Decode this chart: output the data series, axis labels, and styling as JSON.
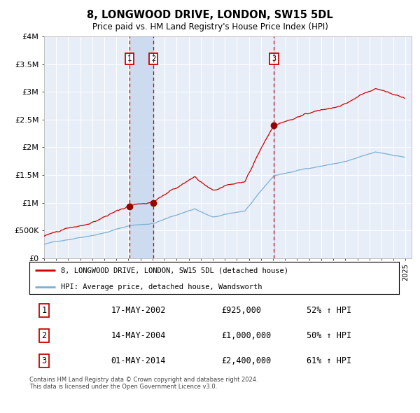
{
  "title": "8, LONGWOOD DRIVE, LONDON, SW15 5DL",
  "subtitle": "Price paid vs. HM Land Registry's House Price Index (HPI)",
  "red_label": "8, LONGWOOD DRIVE, LONDON, SW15 5DL (detached house)",
  "blue_label": "HPI: Average price, detached house, Wandsworth",
  "footer": "Contains HM Land Registry data © Crown copyright and database right 2024.\nThis data is licensed under the Open Government Licence v3.0.",
  "transactions": [
    {
      "num": 1,
      "date": "17-MAY-2002",
      "price": 925000,
      "pct": "52%",
      "dir": "↑"
    },
    {
      "num": 2,
      "date": "14-MAY-2004",
      "price": 1000000,
      "pct": "50%",
      "dir": "↑"
    },
    {
      "num": 3,
      "date": "01-MAY-2014",
      "price": 2400000,
      "pct": "61%",
      "dir": "↑"
    }
  ],
  "transaction_dates_idx": [
    85,
    109,
    229
  ],
  "transaction_prices": [
    925000,
    1000000,
    2400000
  ],
  "ylim": [
    0,
    4000000
  ],
  "yticks": [
    0,
    500000,
    1000000,
    1500000,
    2000000,
    2500000,
    3000000,
    3500000,
    4000000
  ],
  "ytick_labels": [
    "£0",
    "£500K",
    "£1M",
    "£1.5M",
    "£2M",
    "£2.5M",
    "£3M",
    "£3.5M",
    "£4M"
  ],
  "bg_color": "#e8eef7",
  "line_color_red": "#cc0000",
  "line_color_blue": "#7bafd4",
  "highlight_color": "#c8d8ee",
  "marker_color": "#990000",
  "vline_color": "#cc0000",
  "box_color_fill": "white",
  "box_color_edge": "#cc0000"
}
